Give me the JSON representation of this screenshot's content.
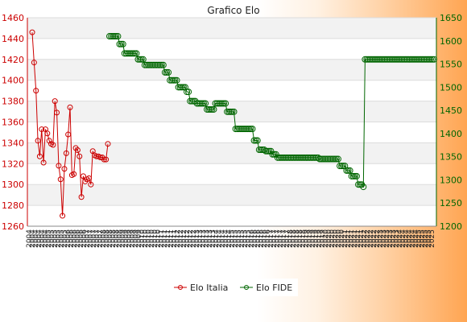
{
  "chart_data": {
    "type": "line",
    "title": "Grafico Elo",
    "grid": true,
    "legend_position": "bottom",
    "x_tick_labels": [
      "2004",
      "2005",
      "2006",
      "2007",
      "2008",
      "2009",
      "2010",
      "2011",
      "2012",
      "2013",
      "2014",
      "2015",
      "2016",
      "2017",
      "2018",
      "2019",
      "2020",
      "2021",
      "2022",
      "2023",
      "2024",
      "2025"
    ],
    "y_left": {
      "range": [
        1260,
        1460
      ],
      "ticks": [
        1260,
        1280,
        1300,
        1320,
        1340,
        1360,
        1380,
        1400,
        1420,
        1440,
        1460
      ],
      "color": "#cc0000"
    },
    "y_right": {
      "range": [
        1200,
        1650
      ],
      "ticks": [
        1200,
        1250,
        1300,
        1350,
        1400,
        1450,
        1500,
        1550,
        1600,
        1650
      ],
      "color": "#006600"
    },
    "series": [
      {
        "name": "Elo Italia",
        "axis": "left",
        "color": "#cc0000",
        "values": [
          1446,
          1417,
          1390,
          1342,
          1327,
          1353,
          1321,
          1353,
          1349,
          1342,
          1339,
          1338,
          1380,
          1369,
          1318,
          1305,
          1270,
          1315,
          1330,
          1348,
          1374,
          1309,
          1310,
          1335,
          1333,
          1327,
          1288,
          1308,
          1303,
          1305,
          1306,
          1300,
          1332,
          1328,
          1327,
          1327,
          1326,
          1326,
          1324,
          1324,
          1339
        ]
      },
      {
        "name": "Elo FIDE",
        "axis": "right",
        "color": "#006600",
        "runs": [
          [
            1610,
            6
          ],
          [
            1593,
            3
          ],
          [
            1573,
            8
          ],
          [
            1560,
            4
          ],
          [
            1548,
            12
          ],
          [
            1532,
            3
          ],
          [
            1515,
            5
          ],
          [
            1500,
            5
          ],
          [
            1490,
            2
          ],
          [
            1470,
            4
          ],
          [
            1465,
            6
          ],
          [
            1452,
            5
          ],
          [
            1465,
            7
          ],
          [
            1447,
            5
          ],
          [
            1410,
            11
          ],
          [
            1385,
            3
          ],
          [
            1365,
            4
          ],
          [
            1362,
            4
          ],
          [
            1355,
            3
          ],
          [
            1348,
            25
          ],
          [
            1345,
            12
          ],
          [
            1330,
            4
          ],
          [
            1320,
            3
          ],
          [
            1308,
            4
          ],
          [
            1290,
            3
          ],
          [
            1285,
            1
          ],
          [
            1560,
            42
          ]
        ]
      }
    ]
  }
}
